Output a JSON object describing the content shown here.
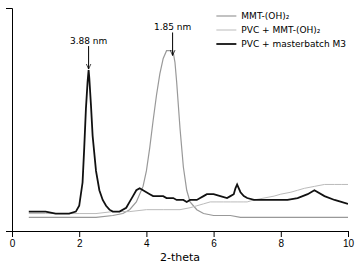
{
  "chart_data": {
    "type": "line",
    "xlabel": "2-theta",
    "xlim": [
      0,
      10
    ],
    "ylim": [
      -0.05,
      1.1
    ],
    "xticks": [
      0,
      2,
      4,
      6,
      8,
      10
    ],
    "tick_labels": "x",
    "legend": "upper right",
    "annotations": [
      {
        "text": "3.88 nm",
        "x": 2.28,
        "y": 0.78
      },
      {
        "text": "1.85 nm",
        "x": 4.78,
        "y": 0.85
      }
    ],
    "series": [
      {
        "name": "MMT-(OH)₂",
        "color": "#999999",
        "x": [
          0.5,
          1.0,
          1.5,
          2.0,
          2.5,
          3.0,
          3.3,
          3.5,
          3.7,
          3.9,
          4.0,
          4.1,
          4.2,
          4.3,
          4.4,
          4.5,
          4.6,
          4.65,
          4.7,
          4.75,
          4.78,
          4.8,
          4.85,
          4.9,
          5.0,
          5.1,
          5.2,
          5.3,
          5.5,
          5.7,
          6.0,
          6.3,
          6.5,
          6.8,
          7.0,
          7.5,
          8.0,
          8.5,
          9.0,
          9.5,
          10.0
        ],
        "values": [
          0.02,
          0.02,
          0.02,
          0.02,
          0.02,
          0.03,
          0.04,
          0.06,
          0.1,
          0.18,
          0.26,
          0.38,
          0.52,
          0.65,
          0.76,
          0.84,
          0.88,
          0.88,
          0.88,
          0.88,
          0.88,
          0.87,
          0.82,
          0.72,
          0.48,
          0.28,
          0.16,
          0.1,
          0.06,
          0.04,
          0.03,
          0.03,
          0.03,
          0.02,
          0.02,
          0.02,
          0.02,
          0.02,
          0.02,
          0.02,
          0.02
        ]
      },
      {
        "name": "PVC + MMT-(OH)₂",
        "color": "#bbbbbb",
        "x": [
          0.5,
          1.0,
          1.5,
          2.0,
          2.5,
          3.0,
          3.5,
          4.0,
          4.5,
          5.0,
          5.3,
          5.5,
          5.7,
          5.9,
          6.1,
          6.3,
          6.5,
          6.7,
          6.9,
          7.0,
          7.2,
          7.5,
          7.8,
          8.0,
          8.3,
          8.5,
          8.7,
          9.0,
          9.3,
          9.6,
          9.8,
          10.0
        ],
        "values": [
          0.04,
          0.04,
          0.04,
          0.04,
          0.04,
          0.05,
          0.05,
          0.06,
          0.06,
          0.06,
          0.07,
          0.08,
          0.09,
          0.1,
          0.1,
          0.1,
          0.1,
          0.1,
          0.1,
          0.1,
          0.11,
          0.12,
          0.13,
          0.14,
          0.15,
          0.16,
          0.17,
          0.18,
          0.19,
          0.19,
          0.19,
          0.19
        ]
      },
      {
        "name": "PVC + masterbatch M3",
        "color": "#111111",
        "x": [
          0.5,
          1.0,
          1.3,
          1.5,
          1.7,
          1.9,
          2.0,
          2.1,
          2.15,
          2.2,
          2.25,
          2.28,
          2.3,
          2.35,
          2.4,
          2.5,
          2.6,
          2.7,
          2.8,
          2.9,
          3.0,
          3.2,
          3.4,
          3.5,
          3.6,
          3.7,
          3.8,
          3.9,
          4.0,
          4.1,
          4.2,
          4.3,
          4.4,
          4.5,
          4.6,
          4.7,
          4.8,
          4.9,
          5.0,
          5.1,
          5.2,
          5.3,
          5.4,
          5.5,
          5.6,
          5.7,
          5.8,
          5.9,
          6.0,
          6.2,
          6.4,
          6.5,
          6.6,
          6.65,
          6.7,
          6.75,
          6.8,
          6.9,
          7.0,
          7.2,
          7.5,
          7.8,
          8.0,
          8.2,
          8.5,
          8.8,
          9.0,
          9.3,
          9.6,
          9.8,
          10.0
        ],
        "values": [
          0.05,
          0.05,
          0.04,
          0.04,
          0.04,
          0.05,
          0.08,
          0.2,
          0.38,
          0.58,
          0.72,
          0.78,
          0.74,
          0.6,
          0.44,
          0.26,
          0.16,
          0.11,
          0.08,
          0.06,
          0.05,
          0.05,
          0.07,
          0.1,
          0.13,
          0.16,
          0.17,
          0.16,
          0.15,
          0.14,
          0.13,
          0.13,
          0.13,
          0.13,
          0.12,
          0.12,
          0.12,
          0.11,
          0.11,
          0.11,
          0.1,
          0.11,
          0.11,
          0.11,
          0.12,
          0.13,
          0.14,
          0.14,
          0.14,
          0.13,
          0.12,
          0.13,
          0.14,
          0.17,
          0.19,
          0.17,
          0.15,
          0.13,
          0.12,
          0.11,
          0.11,
          0.11,
          0.11,
          0.11,
          0.12,
          0.14,
          0.16,
          0.13,
          0.11,
          0.1,
          0.09
        ]
      }
    ]
  }
}
